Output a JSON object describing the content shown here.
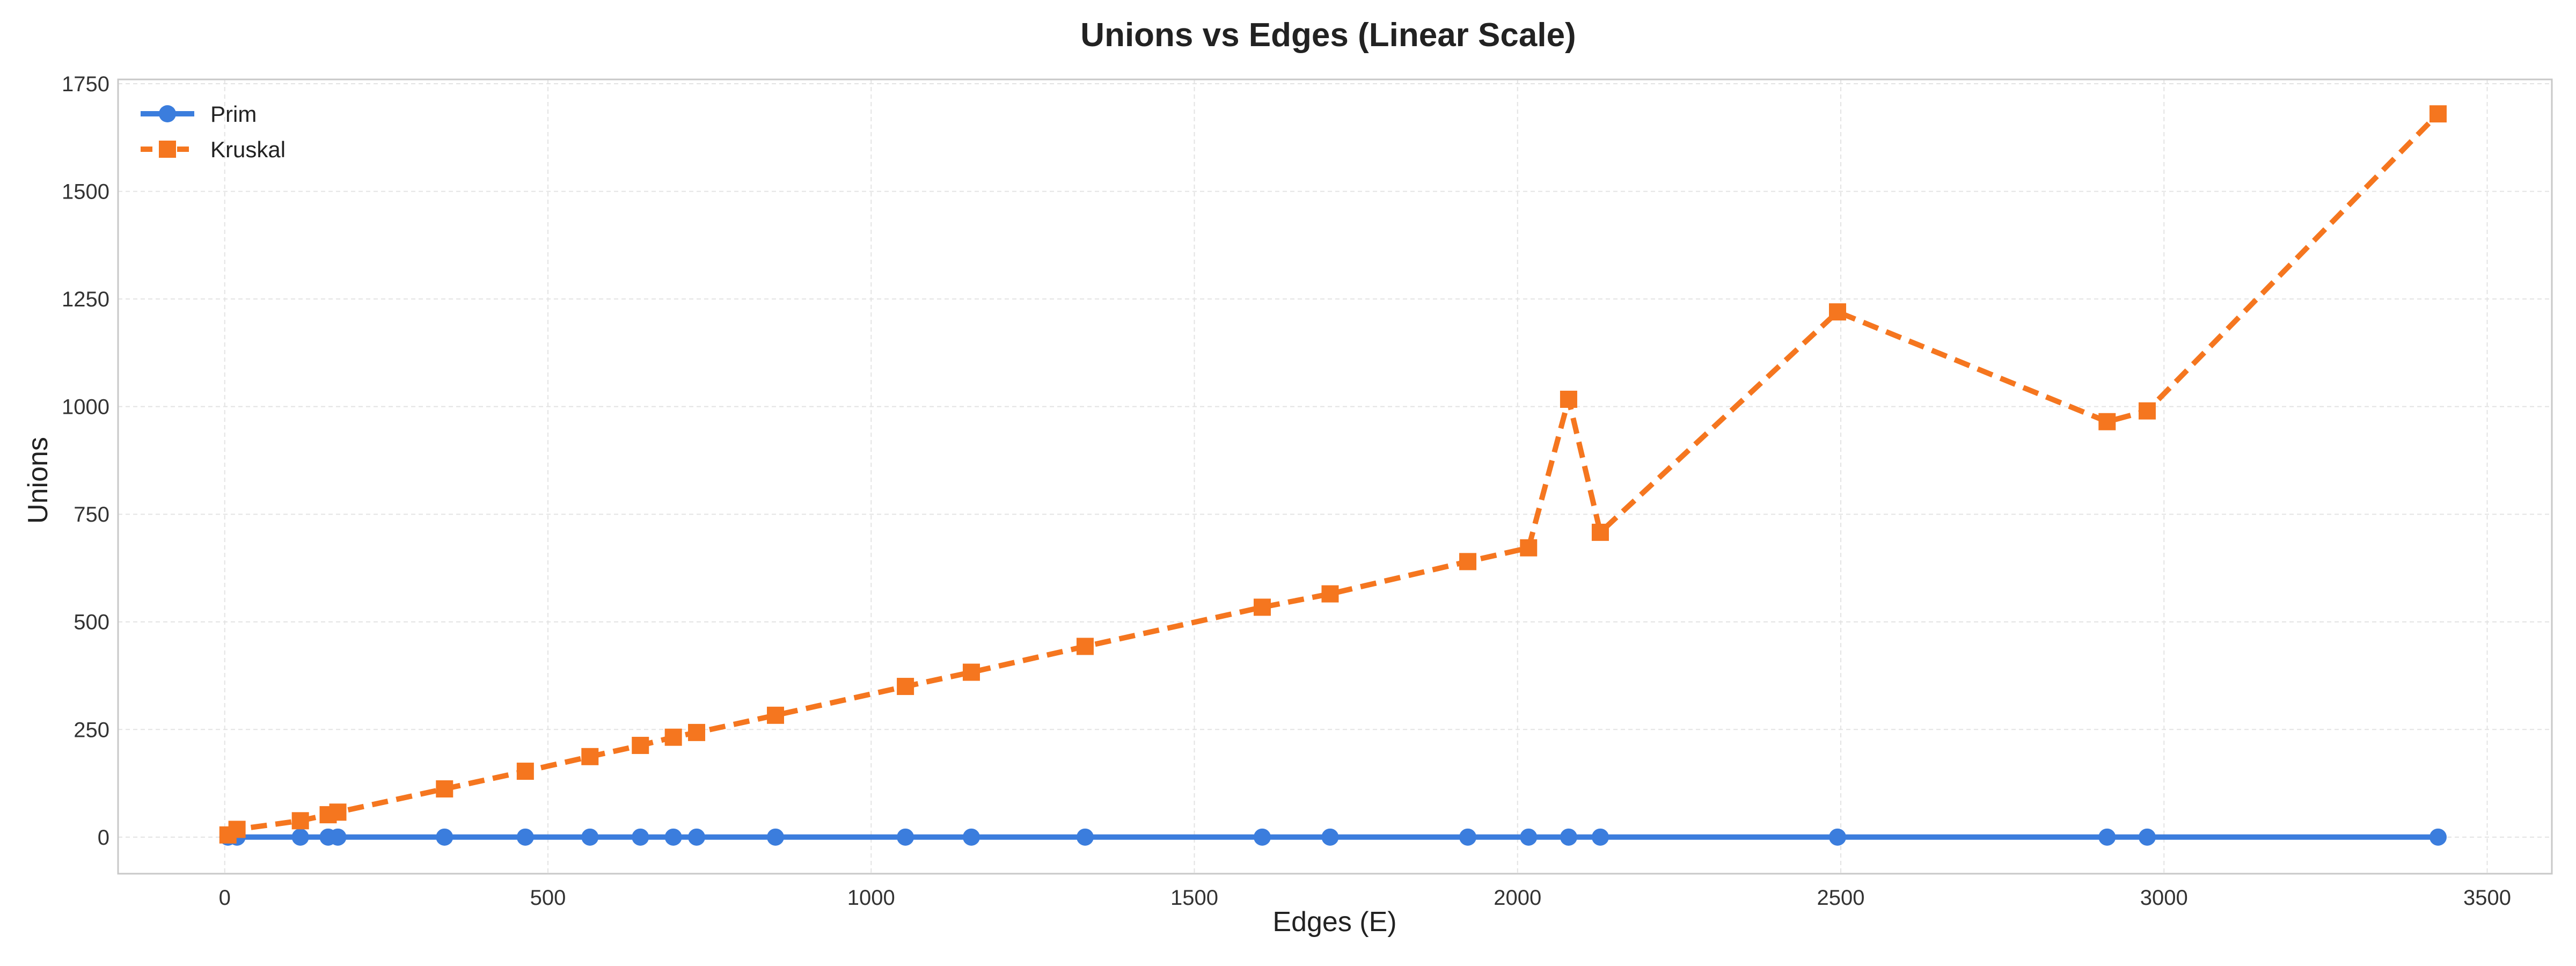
{
  "chart_data": {
    "type": "line",
    "title": "Unions vs Edges (Linear Scale)",
    "xlabel": "Edges (E)",
    "ylabel": "Unions",
    "xlim": [
      -165,
      3600
    ],
    "ylim": [
      -85,
      1760
    ],
    "xticks": [
      0,
      500,
      1000,
      1500,
      2000,
      2500,
      3000,
      3500
    ],
    "yticks": [
      0,
      250,
      500,
      750,
      1000,
      1250,
      1500,
      1750
    ],
    "grid": true,
    "legend_position": "top-left",
    "x": [
      5,
      19,
      117,
      160,
      175,
      340,
      465,
      565,
      643,
      694,
      730,
      852,
      1053,
      1155,
      1331,
      1605,
      1710,
      1923,
      2017,
      2079,
      2128,
      2495,
      2912,
      2974,
      3424
    ],
    "series": [
      {
        "name": "Prim",
        "color": "#3b7ddd",
        "line_style": "solid",
        "marker": "circle",
        "values": [
          0,
          0,
          0,
          0,
          0,
          0,
          0,
          0,
          0,
          0,
          0,
          0,
          0,
          0,
          0,
          0,
          0,
          0,
          0,
          0,
          0,
          0,
          0,
          0,
          0
        ]
      },
      {
        "name": "Kruskal",
        "color": "#f5761f",
        "line_style": "dashed",
        "marker": "square",
        "values": [
          5,
          18,
          38,
          52,
          58,
          112,
          153,
          187,
          213,
          232,
          243,
          283,
          350,
          383,
          443,
          534,
          565,
          640,
          672,
          1017,
          708,
          1220,
          965,
          990,
          1680
        ]
      }
    ]
  }
}
